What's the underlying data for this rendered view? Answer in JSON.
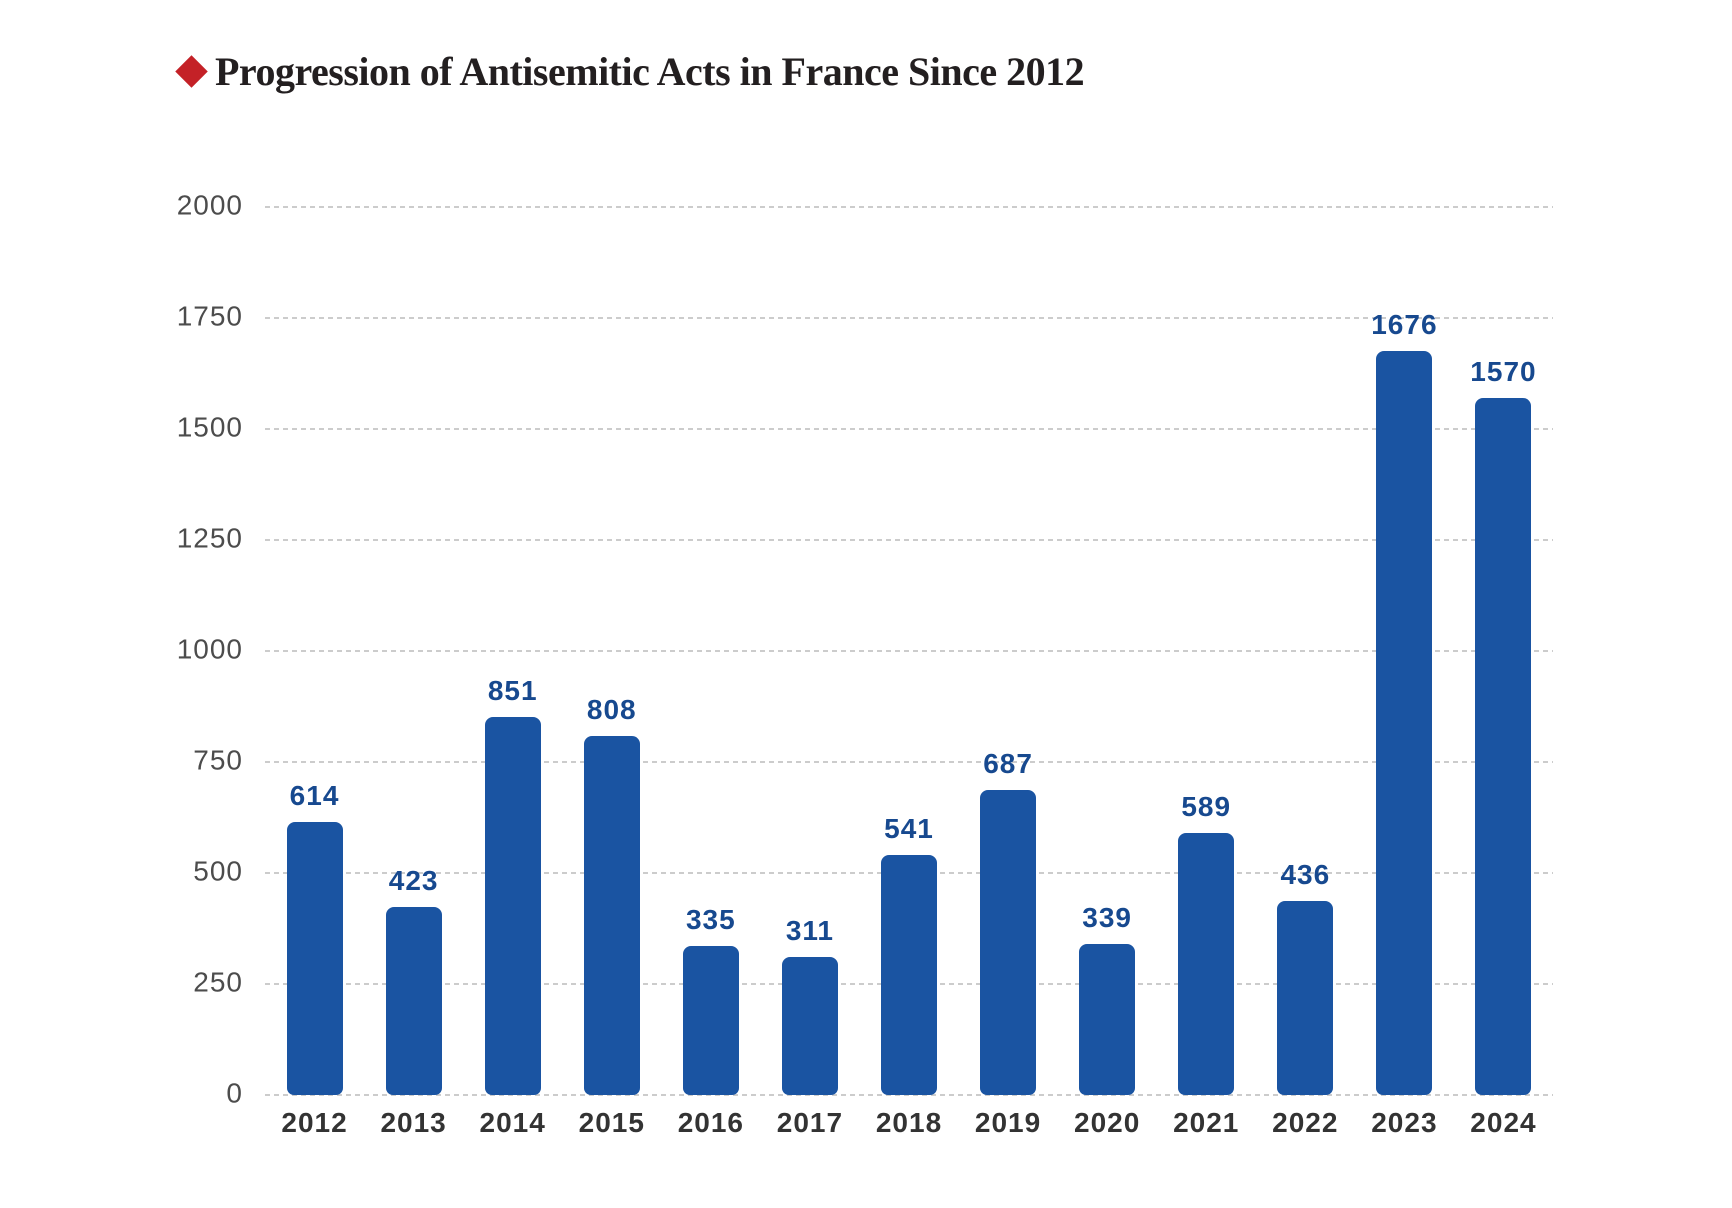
{
  "title": {
    "text": "Progression of Antisemitic Acts in France Since 2012"
  },
  "colors": {
    "background": "#ffffff",
    "title_text": "#231f20",
    "title_bullet_red": "#c42127",
    "bar": "#1a54a2",
    "bar_value_label": "#17498f",
    "gridline": "#cccccc",
    "y_tick_label": "#4c4c4c",
    "x_tick_label": "#333333"
  },
  "chart_data": {
    "type": "bar",
    "title": "Progression of Antisemitic Acts in France Since 2012",
    "categories": [
      "2012",
      "2013",
      "2014",
      "2015",
      "2016",
      "2017",
      "2018",
      "2019",
      "2020",
      "2021",
      "2022",
      "2023",
      "2024"
    ],
    "values": [
      614,
      423,
      851,
      808,
      335,
      311,
      541,
      687,
      339,
      589,
      436,
      1676,
      1570
    ],
    "xlabel": "",
    "ylabel": "",
    "ylim": [
      0,
      2000
    ],
    "yticks": [
      0,
      250,
      500,
      750,
      1000,
      1250,
      1500,
      1750,
      2000
    ],
    "grid": "horizontal-dashed",
    "legend": "none",
    "bar_value_labels_shown": true
  }
}
